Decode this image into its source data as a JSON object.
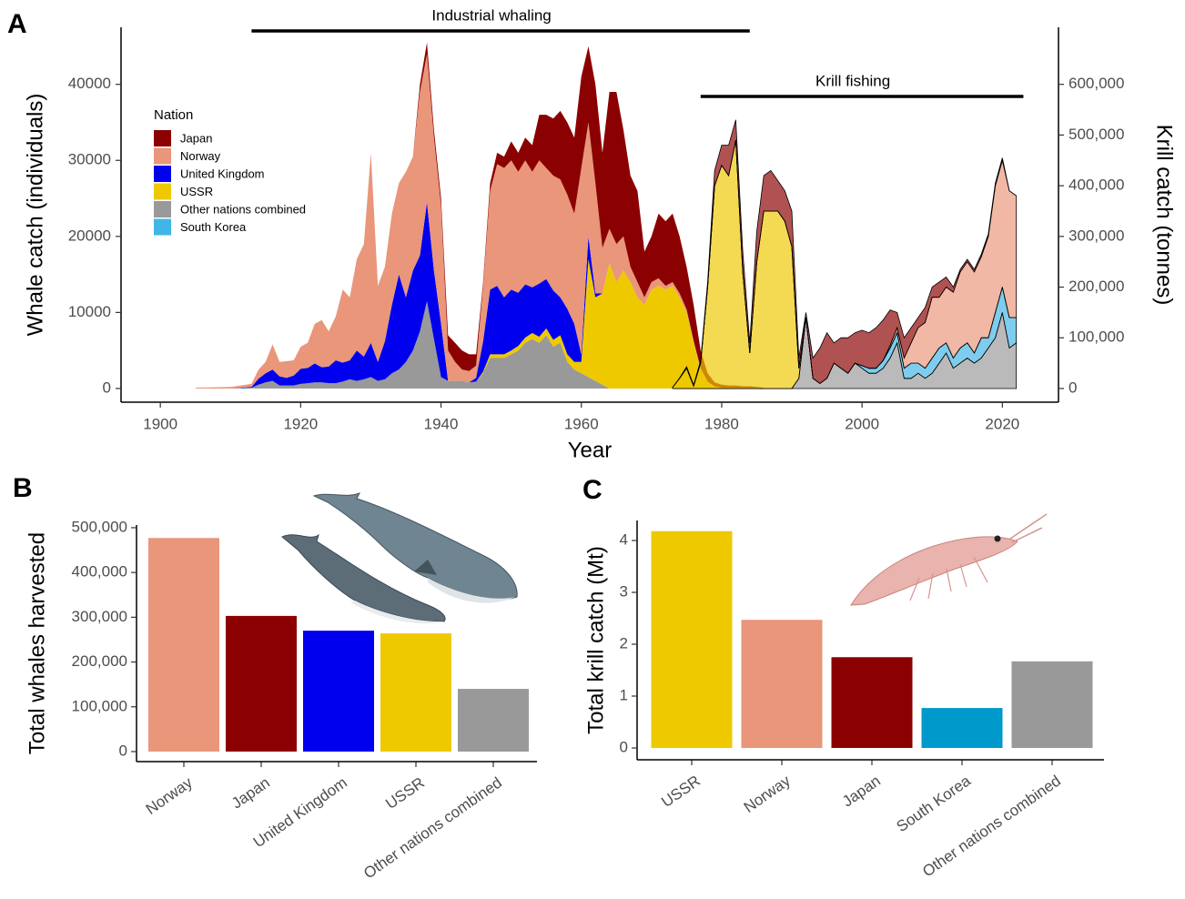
{
  "chart_data": [
    {
      "type": "area",
      "panel": "A",
      "xlabel": "Year",
      "ylabel": "Whale catch (individuals)",
      "legend_title": "Nation",
      "annotations": [
        {
          "label": "Industrial whaling",
          "start": 1913,
          "end": 1984
        },
        {
          "label": "Krill fishing",
          "start": 1977,
          "end": 2023
        }
      ],
      "xlim": [
        1894.4,
        2028
      ],
      "xticks": [
        1900,
        1920,
        1940,
        1960,
        1980,
        2000,
        2020
      ],
      "ylim": [
        -1800,
        47500
      ],
      "yticks": [
        0,
        10000,
        20000,
        30000,
        40000
      ],
      "x": [
        1905,
        1910,
        1913,
        1914,
        1915,
        1916,
        1917,
        1918,
        1919,
        1920,
        1921,
        1922,
        1923,
        1924,
        1925,
        1926,
        1927,
        1928,
        1929,
        1930,
        1931,
        1932,
        1933,
        1934,
        1935,
        1936,
        1937,
        1938,
        1939,
        1940,
        1941,
        1942,
        1943,
        1944,
        1945,
        1946,
        1947,
        1948,
        1949,
        1950,
        1951,
        1952,
        1953,
        1954,
        1955,
        1956,
        1957,
        1958,
        1959,
        1960,
        1961,
        1962,
        1963,
        1964,
        1965,
        1966,
        1967,
        1968,
        1969,
        1970,
        1971,
        1972,
        1973,
        1974,
        1975,
        1976,
        1977,
        1978,
        1979,
        1980,
        1981,
        1982,
        1983,
        1984,
        1985,
        1986
      ],
      "series": [
        {
          "name": "Japan",
          "color": "#8b0000",
          "values": [
            0,
            0,
            0,
            0,
            0,
            0,
            0,
            0,
            0,
            0,
            0,
            0,
            0,
            0,
            0,
            0,
            0,
            0,
            0,
            0,
            0,
            0,
            0,
            0,
            0,
            0,
            1000,
            1500,
            1000,
            1000,
            2000,
            2500,
            2500,
            2200,
            1500,
            500,
            1000,
            1500,
            1500,
            2500,
            2500,
            3000,
            3500,
            6000,
            7000,
            7500,
            9000,
            9500,
            10000,
            12000,
            10000,
            13000,
            12500,
            18000,
            20000,
            14000,
            12000,
            12000,
            6000,
            6000,
            8500,
            8500,
            9000,
            7500,
            5600,
            4700,
            2300,
            1100,
            500,
            400,
            300,
            300,
            200,
            200,
            100,
            50
          ]
        },
        {
          "name": "Norway",
          "color": "#e9967a",
          "values": [
            100,
            200,
            400,
            1200,
            1500,
            3300,
            1900,
            2200,
            2000,
            2900,
            3300,
            5200,
            6200,
            4600,
            5800,
            9600,
            8300,
            12000,
            14800,
            25000,
            10000,
            9800,
            12000,
            12000,
            16500,
            15000,
            21500,
            19500,
            17500,
            15500,
            4000,
            2500,
            1500,
            1500,
            1600,
            7300,
            13000,
            16000,
            17000,
            17000,
            15900,
            16300,
            15200,
            16200,
            14600,
            15100,
            15500,
            15000,
            14500,
            24500,
            15000,
            14500,
            6000,
            4500,
            5000,
            4500,
            2000,
            2000,
            1000,
            1000,
            1000,
            500,
            500,
            500,
            400,
            300,
            200,
            100,
            100,
            100,
            100,
            100,
            100,
            100,
            100,
            50
          ]
        },
        {
          "name": "United Kingdom",
          "color": "#0000ee",
          "values": [
            0,
            0,
            100,
            800,
            1200,
            1500,
            1200,
            1000,
            1300,
            2000,
            2000,
            2500,
            2000,
            2200,
            3000,
            2500,
            2500,
            4000,
            3000,
            4500,
            2500,
            5000,
            9000,
            12500,
            8500,
            10500,
            10000,
            13000,
            9000,
            7000,
            0,
            0,
            0,
            0,
            500,
            4000,
            8500,
            9000,
            7500,
            8000,
            7000,
            7000,
            6000,
            7000,
            6500,
            6500,
            5000,
            6000,
            5000,
            1000,
            3000,
            500,
            0,
            0,
            0,
            0,
            0,
            0,
            0,
            0,
            0,
            0,
            0,
            0,
            0,
            0,
            0,
            0,
            0,
            0,
            0,
            0,
            0,
            0,
            0,
            0
          ]
        },
        {
          "name": "USSR",
          "color": "#eec900",
          "values": [
            0,
            0,
            0,
            0,
            0,
            0,
            0,
            0,
            0,
            0,
            0,
            0,
            0,
            0,
            0,
            0,
            0,
            0,
            0,
            0,
            0,
            0,
            0,
            0,
            0,
            0,
            0,
            0,
            0,
            0,
            0,
            0,
            0,
            0,
            0,
            200,
            500,
            500,
            500,
            500,
            600,
            700,
            800,
            800,
            900,
            900,
            1000,
            1000,
            1000,
            1500,
            15500,
            11000,
            12000,
            16500,
            14000,
            15500,
            14000,
            12000,
            11000,
            13000,
            13500,
            13000,
            13500,
            12000,
            10000,
            6000,
            2500,
            800,
            200,
            0,
            0,
            0,
            0,
            0,
            0,
            0
          ]
        },
        {
          "name": "Other nations combined",
          "color": "#999999",
          "values": [
            0,
            0,
            100,
            500,
            800,
            1000,
            400,
            400,
            400,
            600,
            700,
            800,
            800,
            700,
            700,
            900,
            1200,
            1000,
            1200,
            1500,
            1000,
            1200,
            2000,
            2500,
            3500,
            5000,
            7500,
            11500,
            6500,
            1500,
            1000,
            1000,
            1000,
            800,
            900,
            2000,
            4000,
            4000,
            4000,
            4500,
            5000,
            6000,
            6500,
            6000,
            7000,
            5500,
            6000,
            3500,
            2500,
            2000,
            1500,
            1000,
            500,
            0,
            0,
            0,
            0,
            0,
            0,
            0,
            0,
            0,
            0,
            0,
            0,
            0,
            0,
            0,
            0,
            0,
            0,
            0,
            0,
            0,
            0,
            0
          ]
        }
      ]
    },
    {
      "type": "area",
      "y2label": "Krill catch (tonnes)",
      "y2lim": [
        -27000,
        712500
      ],
      "y2ticks": [
        0,
        {
          "value": 100000,
          "label": "100,000"
        },
        {
          "value": 200000,
          "label": "200,000"
        },
        {
          "value": 300000,
          "label": "300,000"
        },
        {
          "value": 400000,
          "label": "400,000"
        },
        {
          "value": 500000,
          "label": "500,000"
        },
        {
          "value": 600000,
          "label": "600,000"
        }
      ],
      "x": [
        1973,
        1974,
        1975,
        1976,
        1977,
        1978,
        1979,
        1980,
        1981,
        1982,
        1983,
        1984,
        1985,
        1986,
        1987,
        1988,
        1989,
        1990,
        1991,
        1992,
        1993,
        1994,
        1995,
        1996,
        1997,
        1998,
        1999,
        2000,
        2001,
        2002,
        2003,
        2004,
        2005,
        2006,
        2007,
        2008,
        2009,
        2010,
        2011,
        2012,
        2013,
        2014,
        2015,
        2016,
        2017,
        2018,
        2019,
        2020,
        2021,
        2022
      ],
      "series": [
        {
          "name": "Japan",
          "color": "#8b0000",
          "axis": "y2",
          "values": [
            0,
            1000,
            3000,
            2000,
            5000,
            10000,
            30000,
            40000,
            60000,
            40000,
            40000,
            20000,
            60000,
            70000,
            80000,
            60000,
            60000,
            70000,
            20000,
            10000,
            40000,
            70000,
            90000,
            40000,
            60000,
            70000,
            60000,
            70000,
            70000,
            80000,
            80000,
            70000,
            30000,
            40000,
            30000,
            20000,
            30000,
            20000,
            30000,
            20000,
            10000,
            5000,
            5000,
            5000,
            5000,
            5000,
            5000,
            5000,
            0,
            0
          ]
        },
        {
          "name": "Norway",
          "color": "#e9967a",
          "axis": "y2",
          "values": [
            0,
            0,
            0,
            0,
            0,
            0,
            0,
            0,
            0,
            0,
            0,
            0,
            0,
            0,
            0,
            0,
            0,
            0,
            0,
            0,
            0,
            0,
            0,
            0,
            0,
            0,
            0,
            0,
            0,
            0,
            0,
            5000,
            10000,
            20000,
            40000,
            70000,
            90000,
            120000,
            100000,
            110000,
            130000,
            150000,
            160000,
            160000,
            160000,
            200000,
            250000,
            250000,
            250000,
            240000
          ]
        },
        {
          "name": "USSR",
          "color": "#eec900",
          "axis": "y2",
          "values": [
            2000,
            20000,
            40000,
            5000,
            50000,
            200000,
            400000,
            440000,
            420000,
            490000,
            230000,
            70000,
            250000,
            350000,
            350000,
            350000,
            330000,
            280000,
            20000,
            0,
            0,
            0,
            0,
            0,
            0,
            0,
            0,
            0,
            0,
            0,
            0,
            0,
            0,
            0,
            0,
            0,
            0,
            0,
            0,
            0,
            0,
            0,
            0,
            0,
            0,
            0,
            0,
            0,
            0,
            0
          ]
        },
        {
          "name": "South Korea",
          "color": "#41b6e6",
          "axis": "y2",
          "values": [
            0,
            0,
            0,
            0,
            0,
            0,
            0,
            0,
            0,
            0,
            0,
            0,
            0,
            0,
            0,
            0,
            0,
            0,
            0,
            0,
            0,
            0,
            0,
            0,
            0,
            0,
            0,
            5000,
            10000,
            10000,
            15000,
            20000,
            20000,
            20000,
            30000,
            20000,
            20000,
            30000,
            30000,
            20000,
            20000,
            30000,
            30000,
            20000,
            40000,
            20000,
            50000,
            50000,
            60000,
            50000
          ]
        },
        {
          "name": "Other nations combined",
          "color": "#999999",
          "axis": "y2",
          "values": [
            0,
            0,
            0,
            0,
            0,
            0,
            0,
            0,
            0,
            0,
            0,
            0,
            0,
            0,
            0,
            0,
            0,
            0,
            20000,
            140000,
            20000,
            10000,
            20000,
            50000,
            40000,
            30000,
            50000,
            40000,
            30000,
            30000,
            40000,
            60000,
            90000,
            20000,
            20000,
            30000,
            20000,
            30000,
            50000,
            70000,
            40000,
            50000,
            60000,
            50000,
            60000,
            80000,
            100000,
            150000,
            80000,
            90000
          ]
        }
      ]
    },
    {
      "type": "bar",
      "panel": "B",
      "ylabel": "Total whales harvested",
      "categories": [
        "Norway",
        "Japan",
        "United Kingdom",
        "USSR",
        "Other nations combined"
      ],
      "values": [
        477000,
        303000,
        270000,
        264000,
        140000
      ],
      "colors": [
        "#e9967a",
        "#8b0000",
        "#0000ee",
        "#eec900",
        "#999999"
      ],
      "ylim": [
        -22400,
        506000
      ],
      "yticks": [
        0,
        {
          "value": 100000,
          "label": "100,000"
        },
        {
          "value": 200000,
          "label": "200,000"
        },
        {
          "value": 300000,
          "label": "300,000"
        },
        {
          "value": 400000,
          "label": "400,000"
        },
        {
          "value": 500000,
          "label": "500,000"
        }
      ]
    },
    {
      "type": "bar",
      "panel": "C",
      "ylabel": "Total krill catch (Mt)",
      "categories": [
        "USSR",
        "Norway",
        "Japan",
        "South Korea",
        "Other nations combined"
      ],
      "values": [
        4.18,
        2.47,
        1.75,
        0.77,
        1.67
      ],
      "colors": [
        "#eec900",
        "#e9967a",
        "#8b0000",
        "#0099cc",
        "#999999"
      ],
      "ylim": [
        -0.228,
        4.386
      ],
      "yticks": [
        0,
        1,
        2,
        3,
        4
      ]
    }
  ]
}
